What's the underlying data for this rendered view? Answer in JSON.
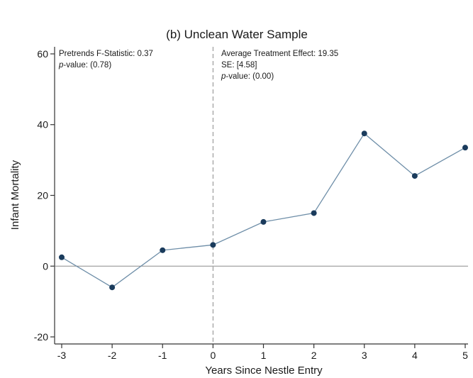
{
  "chart_data": {
    "type": "line",
    "title": "(b) Unclean Water Sample",
    "xlabel": "Years Since Nestle Entry",
    "ylabel": "Infant Mortality",
    "xlim": [
      -3,
      5
    ],
    "ylim": [
      -22,
      62
    ],
    "x_ticks": [
      "-3",
      "-2",
      "-1",
      "0",
      "1",
      "2",
      "3",
      "4",
      "5"
    ],
    "y_ticks": [
      "-20",
      "0",
      "20",
      "40",
      "60"
    ],
    "x_tick_values": [
      -3,
      -2,
      -1,
      0,
      1,
      2,
      3,
      4,
      5
    ],
    "y_tick_values": [
      -20,
      0,
      20,
      40,
      60
    ],
    "grid": false,
    "reference_lines": {
      "vertical_dashed_at_x": 0,
      "horizontal_at_y": 0
    },
    "series": [
      {
        "x": [
          -3,
          -2,
          -1,
          0,
          1,
          2,
          3,
          4,
          5
        ],
        "values": [
          2.5,
          -6,
          4.5,
          6,
          12.5,
          15,
          37.5,
          25.5,
          33.5
        ]
      }
    ],
    "annotations": {
      "left": {
        "line1": "Pretrends F-Statistic: 0.37",
        "line2_italic": "p",
        "line2_rest": "-value: (0.78)"
      },
      "right": {
        "line1": "Average Treatment Effect: 19.35",
        "line2": "SE: [4.58]",
        "line3_italic": "p",
        "line3_rest": "-value: (0.00)"
      }
    },
    "colors": {
      "line": "#6e8ea8",
      "marker": "#1a3b5c",
      "axis": "#333333",
      "reference": "#8a8a8a"
    }
  }
}
